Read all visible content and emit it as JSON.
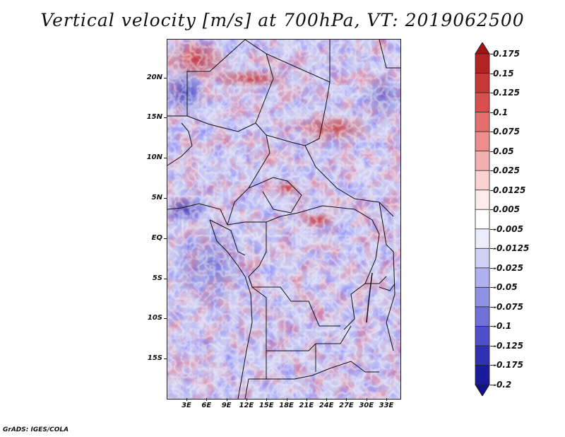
{
  "title": "Vertical velocity [m/s] at 700hPa, VT: 2019062500",
  "footer": "GrADS: IGES/COLA",
  "lat_labels": [
    "20N",
    "15N",
    "10N",
    "5N",
    "EQ",
    "5S",
    "10S",
    "15S"
  ],
  "lon_labels": [
    "3E",
    "6E",
    "9E",
    "12E",
    "15E",
    "18E",
    "21E",
    "24E",
    "27E",
    "30E",
    "33E"
  ],
  "colorbar": {
    "labels": [
      "0.175",
      "0.15",
      "0.125",
      "0.1",
      "0.075",
      "0.05",
      "0.025",
      "0.0125",
      "0.005",
      "-0.005",
      "-0.0125",
      "-0.025",
      "-0.05",
      "-0.075",
      "-0.1",
      "-0.125",
      "-0.175",
      "-0.2"
    ],
    "colors": [
      "#a01414",
      "#b42323",
      "#c83737",
      "#d75050",
      "#e36e6e",
      "#ec8e8e",
      "#f4b1b1",
      "#f9d2d2",
      "#fdecec",
      "#ffffff",
      "#ececfb",
      "#d0d0f5",
      "#b0b0ee",
      "#9090e4",
      "#7070d8",
      "#4f4fcc",
      "#3030b5",
      "#1a1a9c",
      "#10108a"
    ]
  }
}
